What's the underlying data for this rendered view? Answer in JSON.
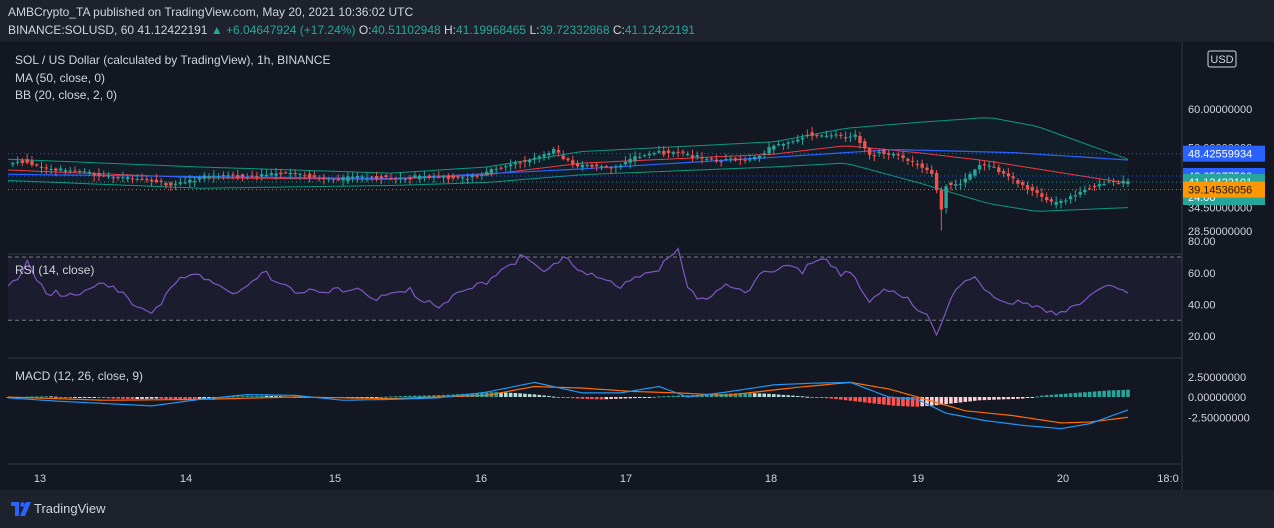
{
  "header": {
    "publisher": "AMBCrypto_TA",
    "published_text": "published on TradingView.com, May 20, 2021 10:36:02 UTC",
    "symbol": "BINANCE:SOLUSD, 60",
    "last_price": "41.12422191",
    "change": "▲ +6.04647924 (+17.24%)",
    "o_label": "O:",
    "open": "40.51102948",
    "h_label": "H:",
    "high": "41.19968465",
    "l_label": "L:",
    "low": "39.72332868",
    "c_label": "C:",
    "close": "41.12422191"
  },
  "legend": {
    "title": "SOL / US Dollar (calculated by TradingView), 1h, BINANCE",
    "ma": "MA (50, close, 0)",
    "bb": "BB (20, close, 2, 0)",
    "rsi": "RSI (14, close)",
    "macd": "MACD (12, 26, close, 9)"
  },
  "currency_badge": "USD",
  "footer": {
    "brand": "TradingView"
  },
  "colors": {
    "bg": "#131722",
    "up": "#26a69a",
    "down": "#ef5350",
    "ma": "#2962ff",
    "bb_band": "#089981",
    "bb_basis": "#f23645",
    "rsi": "#7e57c2",
    "macd": "#2196f3",
    "signal": "#ff6d00"
  },
  "chart_data": [
    {
      "type": "candlestick",
      "title": "SOL / US Dollar (calculated by TradingView), 1h, BINANCE",
      "x_ticks": [
        "13",
        "14",
        "15",
        "16",
        "17",
        "18",
        "19",
        "20",
        "18:0"
      ],
      "y_ticks": [
        "28.50000000",
        "34.50000000",
        "42.50000000",
        "50.00000000",
        "60.00000000"
      ],
      "price_tags": [
        {
          "label": "48.42559934",
          "value": 48.43,
          "color": "#2962ff"
        },
        {
          "label": "42.65977590",
          "value": 42.66,
          "color": "#2962ff"
        },
        {
          "label": "41.12422191",
          "value": 41.12,
          "color": "#26a69a"
        },
        {
          "label": "24:00",
          "value": 40.1,
          "color": "#26a69a"
        },
        {
          "label": "39.14536056",
          "value": 39.15,
          "color": "#ff9800"
        }
      ],
      "close_path": [
        [
          0,
          45.5
        ],
        [
          3,
          46.6
        ],
        [
          8,
          44.8
        ],
        [
          14,
          43.5
        ],
        [
          22,
          42.8
        ],
        [
          28,
          41.6
        ],
        [
          33,
          40.5
        ],
        [
          40,
          42.2
        ],
        [
          47,
          42.6
        ],
        [
          54,
          43.3
        ],
        [
          62,
          42.7
        ],
        [
          70,
          41.9
        ],
        [
          78,
          42.4
        ],
        [
          85,
          42.3
        ],
        [
          90,
          42.0
        ],
        [
          96,
          42.5
        ],
        [
          103,
          44.5
        ],
        [
          107,
          46.3
        ],
        [
          111,
          47.8
        ],
        [
          114,
          49.5
        ],
        [
          116,
          47.0
        ],
        [
          119,
          44.8
        ],
        [
          123,
          45.6
        ],
        [
          127,
          45.2
        ],
        [
          131,
          47.3
        ],
        [
          135,
          48.5
        ],
        [
          140,
          49.2
        ],
        [
          144,
          47.5
        ],
        [
          148,
          46.3
        ],
        [
          152,
          46.8
        ],
        [
          156,
          47.7
        ],
        [
          160,
          50.2
        ],
        [
          164,
          51.3
        ],
        [
          167,
          53.4
        ],
        [
          170,
          53.2
        ],
        [
          173,
          53.5
        ],
        [
          175,
          52.3
        ],
        [
          177,
          52.8
        ],
        [
          180,
          47.6
        ],
        [
          182,
          49.0
        ],
        [
          186,
          48.2
        ],
        [
          190,
          45.3
        ],
        [
          193,
          43.0
        ],
        [
          195,
          34.0
        ],
        [
          196,
          40.5
        ],
        [
          199,
          41.0
        ],
        [
          201,
          43.3
        ],
        [
          203,
          46.0
        ],
        [
          206,
          44.5
        ],
        [
          209,
          42.0
        ],
        [
          212,
          40.5
        ],
        [
          215,
          38.5
        ],
        [
          218,
          35.8
        ],
        [
          221,
          36.2
        ],
        [
          224,
          38.3
        ],
        [
          227,
          40.3
        ],
        [
          230,
          41.6
        ],
        [
          233,
          41.2
        ],
        [
          234,
          41.12
        ]
      ],
      "ma_path": [
        [
          0,
          43.1
        ],
        [
          40,
          42.5
        ],
        [
          80,
          42.0
        ],
        [
          120,
          44.5
        ],
        [
          160,
          47.5
        ],
        [
          185,
          49.5
        ],
        [
          210,
          48.7
        ],
        [
          234,
          46.8
        ]
      ],
      "bb_upper_path": [
        [
          0,
          47.0
        ],
        [
          40,
          45.0
        ],
        [
          80,
          43.4
        ],
        [
          100,
          45.0
        ],
        [
          120,
          49.0
        ],
        [
          160,
          51.5
        ],
        [
          175,
          55.0
        ],
        [
          190,
          56.5
        ],
        [
          205,
          57.8
        ],
        [
          215,
          55.5
        ],
        [
          234,
          47.0
        ]
      ],
      "bb_lower_path": [
        [
          0,
          41.5
        ],
        [
          40,
          39.5
        ],
        [
          80,
          40.2
        ],
        [
          100,
          41.0
        ],
        [
          120,
          43.0
        ],
        [
          160,
          45.0
        ],
        [
          175,
          46.0
        ],
        [
          190,
          41.0
        ],
        [
          205,
          35.5
        ],
        [
          215,
          33.5
        ],
        [
          234,
          34.5
        ]
      ],
      "bb_basis_path": [
        [
          0,
          44.2
        ],
        [
          40,
          42.2
        ],
        [
          80,
          41.8
        ],
        [
          100,
          43.0
        ],
        [
          120,
          46.0
        ],
        [
          160,
          48.3
        ],
        [
          175,
          50.5
        ],
        [
          190,
          48.7
        ],
        [
          205,
          46.5
        ],
        [
          215,
          44.5
        ],
        [
          234,
          40.8
        ]
      ]
    },
    {
      "type": "line",
      "title": "RSI (14, close)",
      "y_ticks": [
        "20.00",
        "40.00",
        "60.00",
        "80.00"
      ],
      "bands": [
        30,
        70
      ],
      "rsi_path": [
        [
          0,
          52
        ],
        [
          4,
          65
        ],
        [
          8,
          45
        ],
        [
          14,
          48
        ],
        [
          20,
          52
        ],
        [
          26,
          42
        ],
        [
          30,
          36
        ],
        [
          36,
          55
        ],
        [
          42,
          58
        ],
        [
          48,
          46
        ],
        [
          54,
          60
        ],
        [
          60,
          50
        ],
        [
          66,
          45
        ],
        [
          72,
          52
        ],
        [
          78,
          44
        ],
        [
          84,
          48
        ],
        [
          90,
          40
        ],
        [
          96,
          48
        ],
        [
          100,
          55
        ],
        [
          104,
          66
        ],
        [
          108,
          70
        ],
        [
          112,
          58
        ],
        [
          116,
          72
        ],
        [
          120,
          62
        ],
        [
          124,
          55
        ],
        [
          128,
          50
        ],
        [
          132,
          60
        ],
        [
          136,
          62
        ],
        [
          140,
          74
        ],
        [
          142,
          48
        ],
        [
          146,
          44
        ],
        [
          150,
          55
        ],
        [
          154,
          45
        ],
        [
          158,
          60
        ],
        [
          162,
          66
        ],
        [
          166,
          62
        ],
        [
          170,
          68
        ],
        [
          174,
          60
        ],
        [
          176,
          62
        ],
        [
          180,
          44
        ],
        [
          184,
          48
        ],
        [
          188,
          42
        ],
        [
          192,
          36
        ],
        [
          194,
          23
        ],
        [
          198,
          48
        ],
        [
          202,
          56
        ],
        [
          206,
          45
        ],
        [
          210,
          42
        ],
        [
          214,
          38
        ],
        [
          218,
          33
        ],
        [
          222,
          40
        ],
        [
          226,
          44
        ],
        [
          230,
          50
        ],
        [
          234,
          48
        ]
      ]
    },
    {
      "type": "line+bar",
      "title": "MACD (12, 26, close, 9)",
      "y_ticks": [
        "2.50000000",
        "0.00000000",
        "-2.50000000"
      ],
      "macd_path": [
        [
          0,
          -0.1
        ],
        [
          10,
          -0.5
        ],
        [
          20,
          -0.8
        ],
        [
          30,
          -1.1
        ],
        [
          40,
          -0.3
        ],
        [
          50,
          0.3
        ],
        [
          60,
          0.2
        ],
        [
          70,
          -0.4
        ],
        [
          80,
          -0.3
        ],
        [
          90,
          -0.1
        ],
        [
          100,
          0.6
        ],
        [
          110,
          1.8
        ],
        [
          120,
          0.5
        ],
        [
          128,
          0.5
        ],
        [
          136,
          1.3
        ],
        [
          142,
          0.0
        ],
        [
          150,
          0.6
        ],
        [
          160,
          1.5
        ],
        [
          168,
          1.7
        ],
        [
          176,
          1.8
        ],
        [
          184,
          0.0
        ],
        [
          190,
          -0.3
        ],
        [
          196,
          -2.0
        ],
        [
          204,
          -2.9
        ],
        [
          212,
          -3.5
        ],
        [
          220,
          -3.9
        ],
        [
          226,
          -3.3
        ],
        [
          234,
          -1.6
        ]
      ],
      "signal_path": [
        [
          0,
          0.0
        ],
        [
          20,
          -0.4
        ],
        [
          40,
          -0.3
        ],
        [
          60,
          0.0
        ],
        [
          80,
          -0.2
        ],
        [
          100,
          0.2
        ],
        [
          110,
          1.3
        ],
        [
          120,
          1.1
        ],
        [
          130,
          0.7
        ],
        [
          140,
          0.5
        ],
        [
          150,
          0.2
        ],
        [
          165,
          1.2
        ],
        [
          176,
          1.8
        ],
        [
          184,
          1.0
        ],
        [
          190,
          0.0
        ],
        [
          200,
          -1.7
        ],
        [
          210,
          -2.3
        ],
        [
          220,
          -3.2
        ],
        [
          226,
          -3.1
        ],
        [
          234,
          -2.5
        ]
      ],
      "histogram": [
        -0.1,
        0.05,
        0.1,
        -0.15,
        -0.05,
        -0.2,
        -0.25,
        -0.2,
        -0.3,
        -0.35,
        0.0,
        0.1,
        0.15,
        0.1,
        -0.05,
        -0.1,
        -0.1,
        -0.05,
        0.05,
        0.15,
        0.2,
        0.3,
        0.45,
        0.6,
        0.5,
        0.3,
        0.0,
        -0.2,
        -0.3,
        -0.2,
        -0.1,
        0.1,
        0.2,
        0.3,
        0.4,
        0.5,
        0.4,
        0.2,
        0.0,
        -0.2,
        -0.5,
        -0.8,
        -1.1,
        -1.2,
        -1.0,
        -0.7,
        -0.4,
        -0.3,
        -0.2,
        0.2,
        0.4,
        0.6,
        0.8,
        0.9
      ]
    }
  ]
}
